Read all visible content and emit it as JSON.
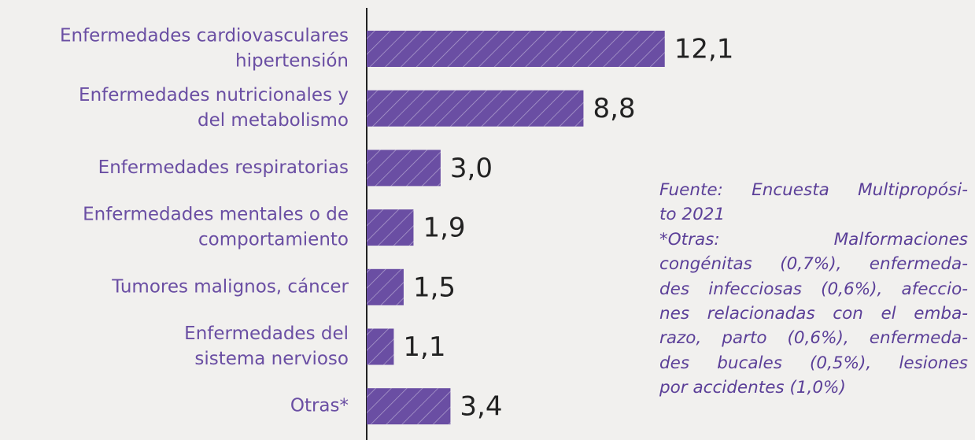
{
  "chart_data": {
    "type": "barh",
    "categories": [
      [
        "Enfermedades cardiovasculares",
        "hipertensión"
      ],
      [
        "Enfermedades nutricionales y",
        "del metabolismo"
      ],
      [
        "Enfermedades respiratorias"
      ],
      [
        "Enfermedades mentales o de",
        "comportamiento"
      ],
      [
        "Tumores malignos, cáncer"
      ],
      [
        "Enfermedades del",
        "sistema nervioso"
      ],
      [
        "Otras*"
      ]
    ],
    "values": [
      12.1,
      8.8,
      3.0,
      1.9,
      1.5,
      1.1,
      3.4
    ],
    "value_labels": [
      "12,1",
      "8,8",
      "3,0",
      "1,9",
      "1,5",
      "1,1",
      "3,4"
    ],
    "color": "#6a4ea3",
    "note": [
      "Fuente: Encuesta Multipropósi-",
      "to 2021",
      "*Otras: Malformaciones",
      "congénitas (0,7%), enfermeda-",
      "des infecciosas (0,6%), afeccio-",
      "nes relacionadas con el emba-",
      "razo, parto (0,6%), enfermeda-",
      "des bucales (0,5%), lesiones",
      "por accidentes (1,0%)"
    ]
  }
}
